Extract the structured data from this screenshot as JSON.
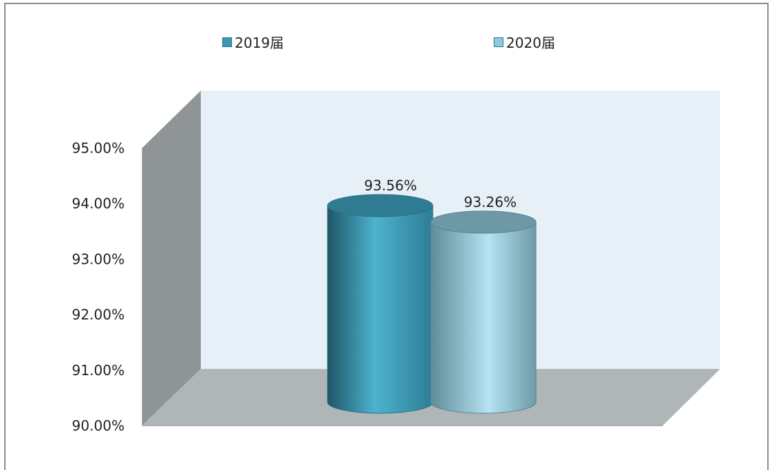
{
  "chart_data": {
    "type": "bar",
    "style": "3d-cylinder",
    "categories": [
      ""
    ],
    "series": [
      {
        "name": "2019届",
        "values": [
          93.56
        ],
        "label": "93.56%",
        "color": "#3a9bb8"
      },
      {
        "name": "2020届",
        "values": [
          93.26
        ],
        "label": "93.26%",
        "color": "#8fcbe0"
      }
    ],
    "y_ticks": [
      "95.00%",
      "94.00%",
      "93.00%",
      "92.00%",
      "91.00%",
      "90.00%"
    ],
    "ylim": [
      90,
      95
    ],
    "legend_position": "top",
    "grid": false,
    "colors": {
      "back_wall": "#e8f0f7",
      "side_wall": "#8f9496",
      "floor": "#b0b5b8"
    }
  }
}
